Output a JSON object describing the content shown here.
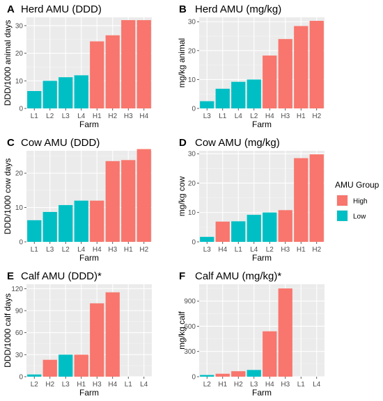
{
  "legend": {
    "title": "AMU Group",
    "placement": "right",
    "items": [
      {
        "label": "High",
        "color": "#F8766D"
      },
      {
        "label": "Low",
        "color": "#00BFC4"
      }
    ]
  },
  "chart_data": [
    {
      "type": "bar",
      "panel": "A",
      "title": "Herd AMU (DDD)",
      "xlabel": "Farm",
      "ylabel": "DDD/1000 animal days",
      "ylim": [
        0,
        33
      ],
      "yticks": [
        0,
        10,
        20,
        30
      ],
      "grid": true,
      "categories": [
        "L1",
        "L2",
        "L3",
        "L4",
        "H1",
        "H2",
        "H3",
        "H4"
      ],
      "values": [
        6.3,
        10.0,
        11.3,
        12.0,
        24.3,
        26.5,
        32.0,
        32.0
      ],
      "groups": [
        "Low",
        "Low",
        "Low",
        "Low",
        "High",
        "High",
        "High",
        "High"
      ]
    },
    {
      "type": "bar",
      "panel": "B",
      "title": "Herd AMU (mg/kg)",
      "xlabel": "Farm",
      "ylabel": "mg/kg animal",
      "ylim": [
        0,
        31.5
      ],
      "yticks": [
        0,
        10,
        20,
        30
      ],
      "grid": true,
      "categories": [
        "L3",
        "L1",
        "L4",
        "L2",
        "H4",
        "H3",
        "H1",
        "H2"
      ],
      "values": [
        2.5,
        6.8,
        9.2,
        10.0,
        18.3,
        24.0,
        28.5,
        30.3
      ],
      "groups": [
        "Low",
        "Low",
        "Low",
        "Low",
        "High",
        "High",
        "High",
        "High"
      ]
    },
    {
      "type": "bar",
      "panel": "C",
      "title": "Cow AMU (DDD)",
      "xlabel": "Farm",
      "ylabel": "DDD/1000 cow days",
      "ylim": [
        0,
        26.5
      ],
      "yticks": [
        0,
        10,
        20
      ],
      "grid": true,
      "categories": [
        "L1",
        "L3",
        "L2",
        "L4",
        "H4",
        "H3",
        "H1",
        "H2"
      ],
      "values": [
        6.3,
        8.7,
        10.7,
        12.0,
        12.0,
        23.5,
        23.8,
        27.0
      ],
      "groups": [
        "Low",
        "Low",
        "Low",
        "Low",
        "High",
        "High",
        "High",
        "High"
      ]
    },
    {
      "type": "bar",
      "panel": "D",
      "title": "Cow AMU (mg/kg)",
      "xlabel": "Farm",
      "ylabel": "mg/kg cow",
      "ylim": [
        0,
        31
      ],
      "yticks": [
        0,
        10,
        20,
        30
      ],
      "grid": true,
      "categories": [
        "L3",
        "H4",
        "L1",
        "L4",
        "L2",
        "H3",
        "H1",
        "H2"
      ],
      "values": [
        1.7,
        6.9,
        7.0,
        9.2,
        10.0,
        10.8,
        28.5,
        29.8
      ],
      "groups": [
        "Low",
        "High",
        "Low",
        "Low",
        "Low",
        "High",
        "High",
        "High"
      ]
    },
    {
      "type": "bar",
      "panel": "E",
      "title": "Calf AMU (DDD)*",
      "xlabel": "Farm",
      "ylabel": "DDD/1000 calf days",
      "ylim": [
        0,
        126
      ],
      "yticks": [
        0,
        30,
        60,
        90,
        120
      ],
      "grid": true,
      "categories": [
        "L2",
        "H2",
        "L3",
        "H1",
        "H3",
        "H4",
        "L1",
        "L4"
      ],
      "values": [
        3,
        23,
        30,
        30,
        100,
        115,
        0,
        0
      ],
      "groups": [
        "Low",
        "High",
        "Low",
        "High",
        "High",
        "High",
        "Low",
        "Low"
      ]
    },
    {
      "type": "bar",
      "panel": "F",
      "title": "Calf AMU (mg/kg)*",
      "xlabel": "Farm",
      "ylabel": "mg/kg calf",
      "ylim": [
        0,
        1100
      ],
      "yticks": [
        0,
        300,
        600,
        900
      ],
      "grid": true,
      "categories": [
        "L2",
        "H1",
        "H2",
        "L3",
        "H4",
        "H3",
        "L1",
        "L4"
      ],
      "values": [
        20,
        35,
        65,
        80,
        540,
        1050,
        0,
        0
      ],
      "groups": [
        "Low",
        "High",
        "High",
        "Low",
        "High",
        "High",
        "Low",
        "Low"
      ]
    }
  ]
}
